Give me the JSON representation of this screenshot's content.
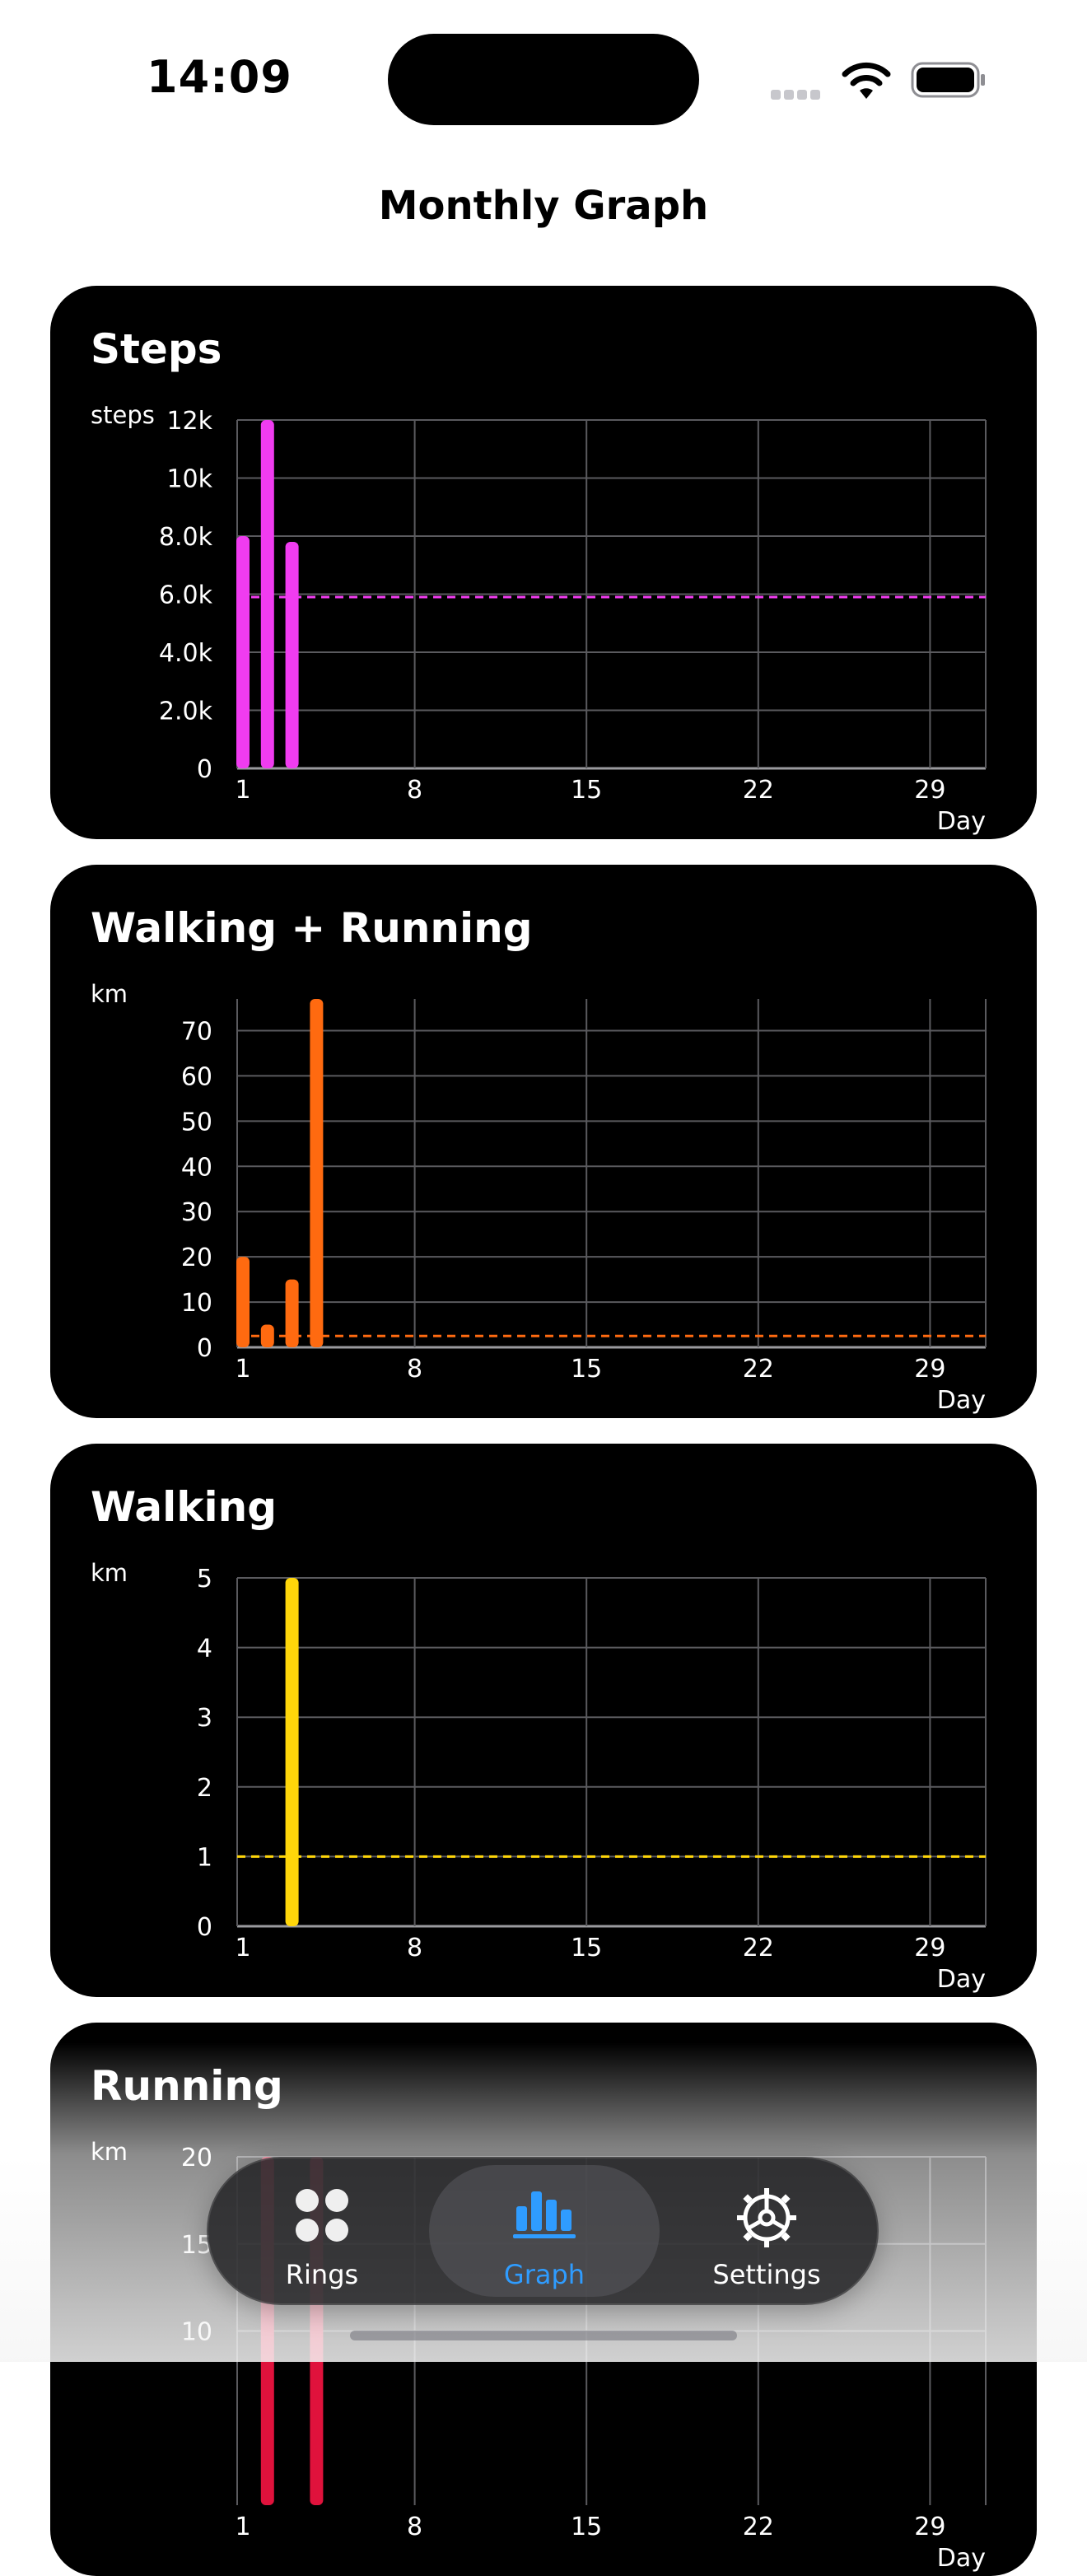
{
  "status_bar": {
    "time": "14:09"
  },
  "nav": {
    "title": "Monthly Graph"
  },
  "colors": {
    "steps": "#f03cf0",
    "walking_running": "#ff6a10",
    "walking": "#ffd60a",
    "running": "#e0123c",
    "tab_selected": "#2f9cff"
  },
  "tabs": [
    {
      "label": "Rings",
      "icon": "rings-icon"
    },
    {
      "label": "Graph",
      "icon": "bar-graph-icon"
    },
    {
      "label": "Settings",
      "icon": "gear-icon"
    }
  ],
  "chart_data": [
    {
      "type": "bar",
      "title": "Steps",
      "ylabel": "steps",
      "xlabel": "Day",
      "x_ticks": [
        "1",
        "8",
        "15",
        "22",
        "29"
      ],
      "y_ticks": [
        "0",
        "2.0k",
        "4.0k",
        "6.0k",
        "8.0k",
        "10k",
        "12k"
      ],
      "ylim": [
        0,
        12000
      ],
      "xlim": [
        1,
        31
      ],
      "points": [
        {
          "day": 1,
          "value": 8000
        },
        {
          "day": 2,
          "value": 12000
        },
        {
          "day": 3,
          "value": 7800
        }
      ],
      "average": 5900,
      "grid": true
    },
    {
      "type": "bar",
      "title": "Walking + Running",
      "ylabel": "km",
      "xlabel": "Day",
      "x_ticks": [
        "1",
        "8",
        "15",
        "22",
        "29"
      ],
      "y_ticks": [
        "0",
        "10",
        "20",
        "30",
        "40",
        "50",
        "60",
        "70"
      ],
      "ylim": [
        0,
        77
      ],
      "xlim": [
        1,
        31
      ],
      "points": [
        {
          "day": 1,
          "value": 20
        },
        {
          "day": 2,
          "value": 5
        },
        {
          "day": 3,
          "value": 15
        },
        {
          "day": 4,
          "value": 77
        }
      ],
      "average": 2.5,
      "grid": true
    },
    {
      "type": "bar",
      "title": "Walking",
      "ylabel": "km",
      "xlabel": "Day",
      "x_ticks": [
        "1",
        "8",
        "15",
        "22",
        "29"
      ],
      "y_ticks": [
        "0",
        "1",
        "2",
        "3",
        "4",
        "5"
      ],
      "ylim": [
        0,
        5
      ],
      "xlim": [
        1,
        31
      ],
      "points": [
        {
          "day": 3,
          "value": 5
        }
      ],
      "average": 1,
      "grid": true
    },
    {
      "type": "bar",
      "title": "Running",
      "ylabel": "km",
      "xlabel": "Day",
      "x_ticks": [
        "1",
        "8",
        "15",
        "22",
        "29"
      ],
      "y_ticks": [
        "10",
        "15",
        "20"
      ],
      "ylim": [
        0,
        20
      ],
      "xlim": [
        1,
        31
      ],
      "points": [
        {
          "day": 2,
          "value": 20
        },
        {
          "day": 4,
          "value": 20
        }
      ],
      "grid": true
    }
  ]
}
